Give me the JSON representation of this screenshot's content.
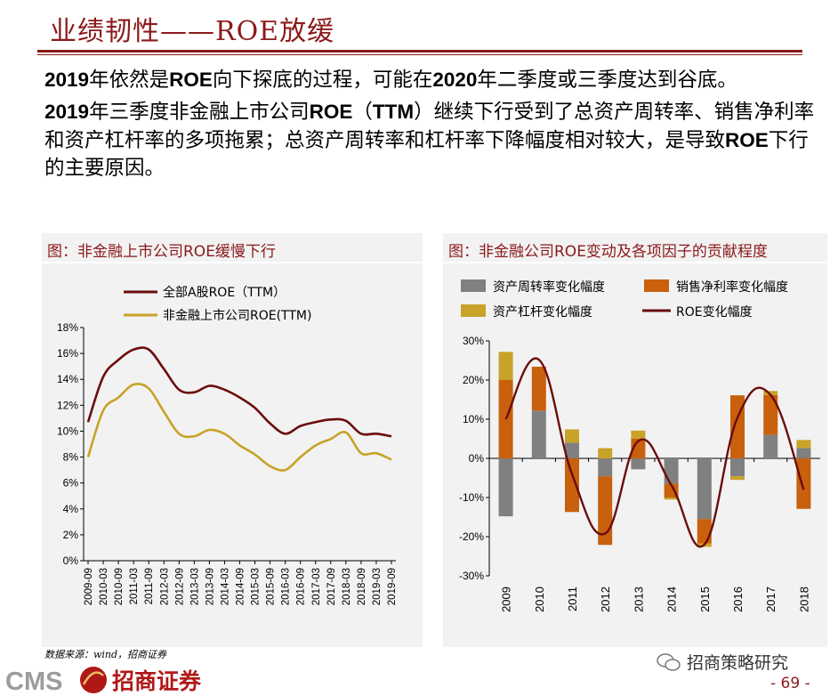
{
  "header": {
    "title": "业绩韧性——ROE放缓"
  },
  "body": {
    "p1": [
      {
        "t": "2019",
        "b": true
      },
      {
        "t": "年依然是",
        "b": false
      },
      {
        "t": "ROE",
        "b": true
      },
      {
        "t": "向下探底的过程，可能在",
        "b": false
      },
      {
        "t": "2020",
        "b": true
      },
      {
        "t": "年二季度或三季度达到谷底。",
        "b": false
      }
    ],
    "p2": [
      {
        "t": "2019",
        "b": true
      },
      {
        "t": "年三季度非金融上市公司",
        "b": false
      },
      {
        "t": "ROE",
        "b": true
      },
      {
        "t": "（",
        "b": false
      },
      {
        "t": "TTM",
        "b": true
      },
      {
        "t": "）继续下行受到了总资产周转率、销售净利率和资产杠杆率的多项拖累；总资产周转率和杠杆率下降幅度相对较大，是导致",
        "b": false
      },
      {
        "t": "ROE",
        "b": true
      },
      {
        "t": "下行的主要原因。",
        "b": false
      }
    ]
  },
  "left_panel": {
    "title": "图：非金融上市公司ROE缓慢下行"
  },
  "right_panel": {
    "title": "图：非金融公司ROE变动及各项因子的贡献程度"
  },
  "chart_data": [
    {
      "type": "line",
      "title": "图：非金融上市公司ROE缓慢下行",
      "x": [
        "2009-09",
        "2010-03",
        "2010-09",
        "2011-03",
        "2011-09",
        "2012-03",
        "2012-09",
        "2013-03",
        "2013-09",
        "2014-03",
        "2014-09",
        "2015-03",
        "2015-09",
        "2016-03",
        "2016-09",
        "2017-03",
        "2017-09",
        "2018-03",
        "2018-09",
        "2019-03",
        "2019-09"
      ],
      "series": [
        {
          "name": "全部A股ROE（TTM）",
          "color": "#6b0d0d",
          "values": [
            10.7,
            14.2,
            15.5,
            16.3,
            16.3,
            14.8,
            13.2,
            13.0,
            13.5,
            13.2,
            12.6,
            11.8,
            10.6,
            9.8,
            10.4,
            10.7,
            10.9,
            10.8,
            9.8,
            9.8,
            9.6
          ]
        },
        {
          "name": "非金融上市公司ROE(TTM)",
          "color": "#c9a227",
          "values": [
            8.0,
            11.6,
            12.6,
            13.6,
            13.3,
            11.5,
            9.8,
            9.6,
            10.1,
            9.8,
            8.9,
            8.2,
            7.3,
            7.0,
            8.0,
            8.9,
            9.4,
            9.9,
            8.3,
            8.3,
            7.8
          ]
        }
      ],
      "ylim": [
        0,
        18
      ],
      "yticks": [
        "0%",
        "2%",
        "4%",
        "6%",
        "8%",
        "10%",
        "12%",
        "14%",
        "16%",
        "18%"
      ]
    },
    {
      "type": "bar",
      "title": "图：非金融公司ROE变动及各项因子的贡献程度",
      "categories": [
        "2009",
        "2010",
        "2011",
        "2012",
        "2013",
        "2014",
        "2015",
        "2016",
        "2017",
        "2018"
      ],
      "series": [
        {
          "name": "资产周转率变化幅度",
          "color": "#808080",
          "values": [
            -14.8,
            12.2,
            4.0,
            -4.6,
            -2.8,
            -6.5,
            -15.5,
            -4.6,
            6.0,
            2.6
          ]
        },
        {
          "name": "销售净利率变化幅度",
          "color": "#c8600d",
          "values": [
            20.0,
            11.2,
            -13.7,
            -17.5,
            5.0,
            -3.5,
            -6.2,
            16.1,
            10.2,
            -12.9
          ]
        },
        {
          "name": "资产杠杆变化幅度",
          "color": "#c9a22a",
          "values": [
            7.2,
            0,
            3.4,
            2.6,
            2.1,
            -0.5,
            -0.9,
            -0.9,
            1.0,
            2.1
          ]
        }
      ],
      "line": {
        "name": "ROE变化幅度",
        "color": "#6b0d0d",
        "values": [
          10.0,
          25.2,
          -4.0,
          -19.2,
          4.4,
          -6.8,
          -22.0,
          10.4,
          16.2,
          -8.0
        ]
      },
      "ylim": [
        -30,
        30
      ],
      "yticks": [
        "-30%",
        "-20%",
        "-10%",
        "0%",
        "10%",
        "20%",
        "30%"
      ]
    }
  ],
  "footer": {
    "source": "数据来源：wind，招商证券",
    "logo_text": "CMS招商证券",
    "watermark": "招商策略研究",
    "page": "- 69 -"
  }
}
